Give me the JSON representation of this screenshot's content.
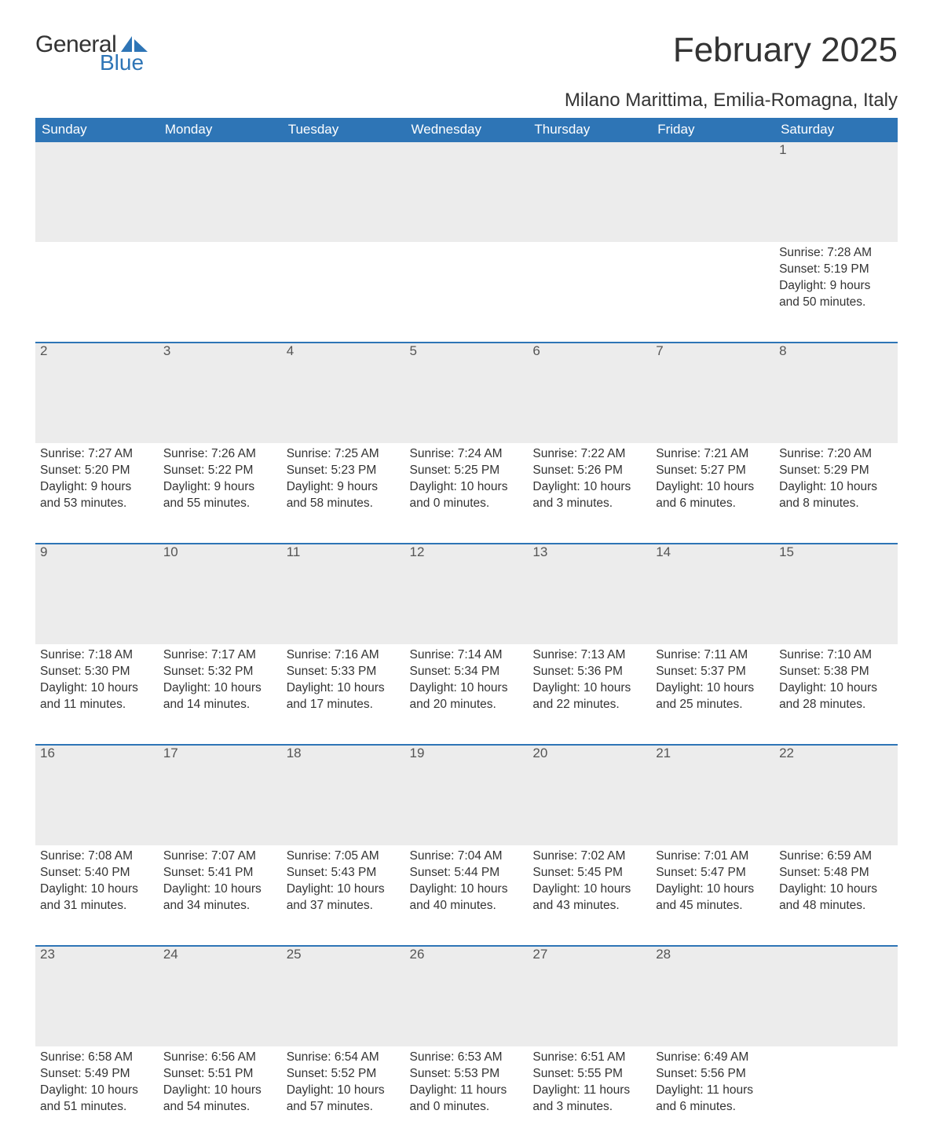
{
  "logo": {
    "text1": "General",
    "text2": "Blue",
    "icon_color": "#2e75b6"
  },
  "title": "February 2025",
  "location": "Milano Marittima, Emilia-Romagna, Italy",
  "colors": {
    "header_bg": "#2e75b6",
    "header_text": "#ffffff",
    "daynum_bg": "#ececec",
    "daynum_border": "#2e75b6",
    "body_text": "#333333",
    "page_bg": "#ffffff"
  },
  "day_headers": [
    "Sunday",
    "Monday",
    "Tuesday",
    "Wednesday",
    "Thursday",
    "Friday",
    "Saturday"
  ],
  "weeks": [
    [
      null,
      null,
      null,
      null,
      null,
      null,
      {
        "n": "1",
        "sunrise": "7:28 AM",
        "sunset": "5:19 PM",
        "dl_h": 9,
        "dl_m": 50
      }
    ],
    [
      {
        "n": "2",
        "sunrise": "7:27 AM",
        "sunset": "5:20 PM",
        "dl_h": 9,
        "dl_m": 53
      },
      {
        "n": "3",
        "sunrise": "7:26 AM",
        "sunset": "5:22 PM",
        "dl_h": 9,
        "dl_m": 55
      },
      {
        "n": "4",
        "sunrise": "7:25 AM",
        "sunset": "5:23 PM",
        "dl_h": 9,
        "dl_m": 58
      },
      {
        "n": "5",
        "sunrise": "7:24 AM",
        "sunset": "5:25 PM",
        "dl_h": 10,
        "dl_m": 0
      },
      {
        "n": "6",
        "sunrise": "7:22 AM",
        "sunset": "5:26 PM",
        "dl_h": 10,
        "dl_m": 3
      },
      {
        "n": "7",
        "sunrise": "7:21 AM",
        "sunset": "5:27 PM",
        "dl_h": 10,
        "dl_m": 6
      },
      {
        "n": "8",
        "sunrise": "7:20 AM",
        "sunset": "5:29 PM",
        "dl_h": 10,
        "dl_m": 8
      }
    ],
    [
      {
        "n": "9",
        "sunrise": "7:18 AM",
        "sunset": "5:30 PM",
        "dl_h": 10,
        "dl_m": 11
      },
      {
        "n": "10",
        "sunrise": "7:17 AM",
        "sunset": "5:32 PM",
        "dl_h": 10,
        "dl_m": 14
      },
      {
        "n": "11",
        "sunrise": "7:16 AM",
        "sunset": "5:33 PM",
        "dl_h": 10,
        "dl_m": 17
      },
      {
        "n": "12",
        "sunrise": "7:14 AM",
        "sunset": "5:34 PM",
        "dl_h": 10,
        "dl_m": 20
      },
      {
        "n": "13",
        "sunrise": "7:13 AM",
        "sunset": "5:36 PM",
        "dl_h": 10,
        "dl_m": 22
      },
      {
        "n": "14",
        "sunrise": "7:11 AM",
        "sunset": "5:37 PM",
        "dl_h": 10,
        "dl_m": 25
      },
      {
        "n": "15",
        "sunrise": "7:10 AM",
        "sunset": "5:38 PM",
        "dl_h": 10,
        "dl_m": 28
      }
    ],
    [
      {
        "n": "16",
        "sunrise": "7:08 AM",
        "sunset": "5:40 PM",
        "dl_h": 10,
        "dl_m": 31
      },
      {
        "n": "17",
        "sunrise": "7:07 AM",
        "sunset": "5:41 PM",
        "dl_h": 10,
        "dl_m": 34
      },
      {
        "n": "18",
        "sunrise": "7:05 AM",
        "sunset": "5:43 PM",
        "dl_h": 10,
        "dl_m": 37
      },
      {
        "n": "19",
        "sunrise": "7:04 AM",
        "sunset": "5:44 PM",
        "dl_h": 10,
        "dl_m": 40
      },
      {
        "n": "20",
        "sunrise": "7:02 AM",
        "sunset": "5:45 PM",
        "dl_h": 10,
        "dl_m": 43
      },
      {
        "n": "21",
        "sunrise": "7:01 AM",
        "sunset": "5:47 PM",
        "dl_h": 10,
        "dl_m": 45
      },
      {
        "n": "22",
        "sunrise": "6:59 AM",
        "sunset": "5:48 PM",
        "dl_h": 10,
        "dl_m": 48
      }
    ],
    [
      {
        "n": "23",
        "sunrise": "6:58 AM",
        "sunset": "5:49 PM",
        "dl_h": 10,
        "dl_m": 51
      },
      {
        "n": "24",
        "sunrise": "6:56 AM",
        "sunset": "5:51 PM",
        "dl_h": 10,
        "dl_m": 54
      },
      {
        "n": "25",
        "sunrise": "6:54 AM",
        "sunset": "5:52 PM",
        "dl_h": 10,
        "dl_m": 57
      },
      {
        "n": "26",
        "sunrise": "6:53 AM",
        "sunset": "5:53 PM",
        "dl_h": 11,
        "dl_m": 0
      },
      {
        "n": "27",
        "sunrise": "6:51 AM",
        "sunset": "5:55 PM",
        "dl_h": 11,
        "dl_m": 3
      },
      {
        "n": "28",
        "sunrise": "6:49 AM",
        "sunset": "5:56 PM",
        "dl_h": 11,
        "dl_m": 6
      },
      null
    ]
  ],
  "labels": {
    "sunrise": "Sunrise:",
    "sunset": "Sunset:",
    "daylight": "Daylight:"
  }
}
